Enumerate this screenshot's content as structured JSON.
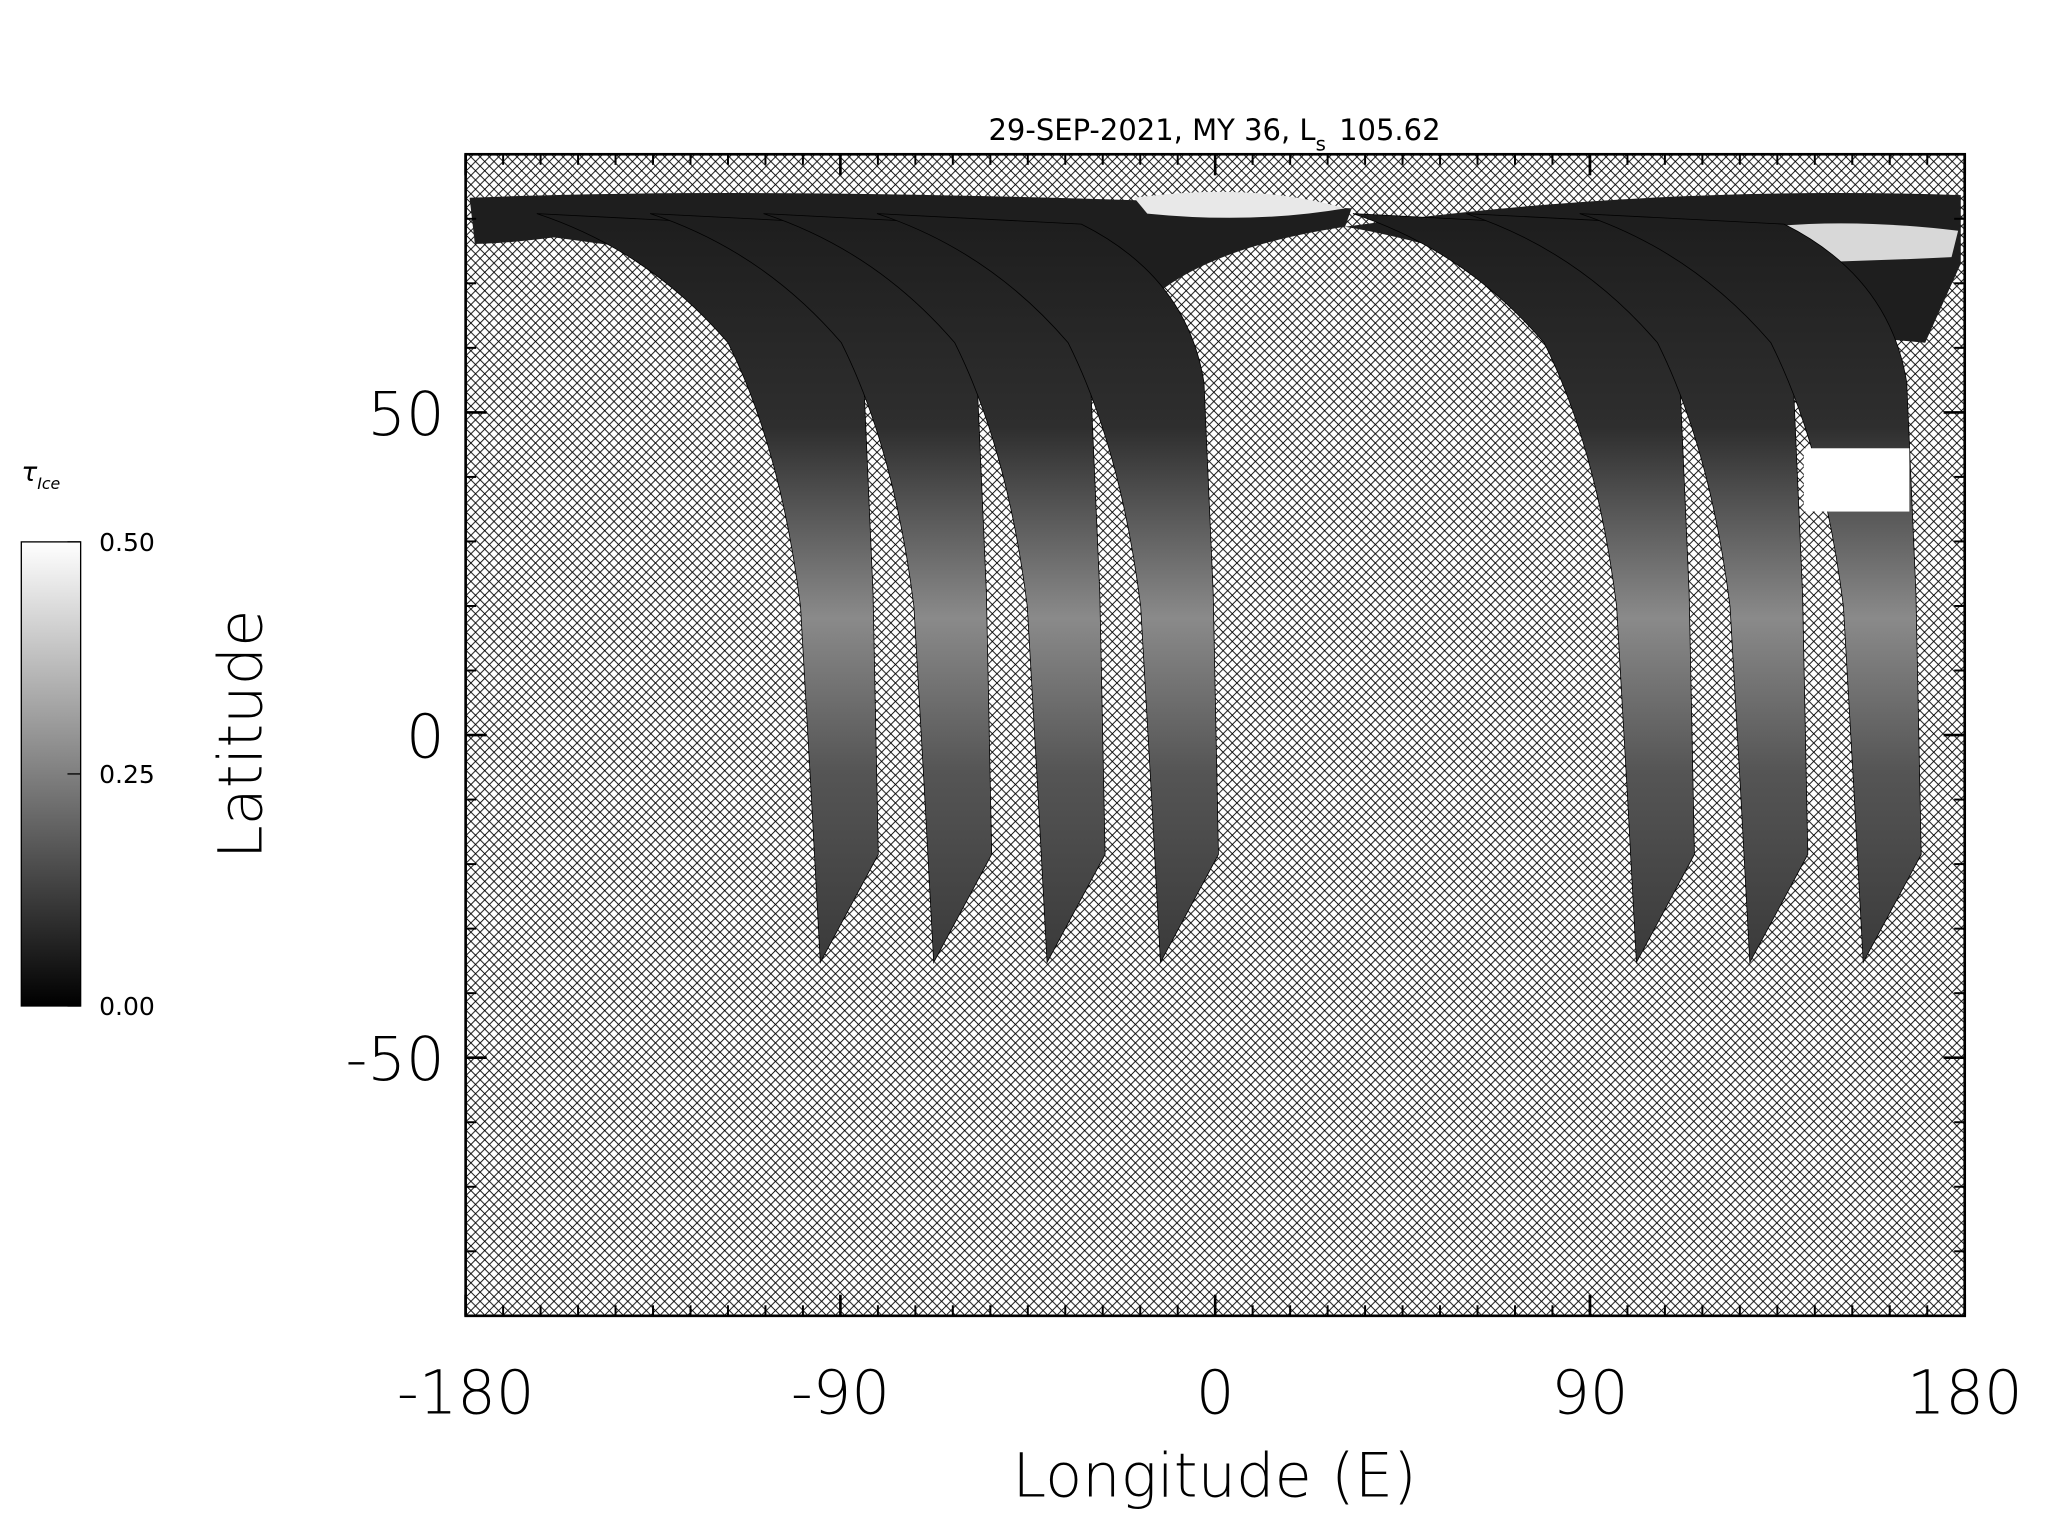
{
  "chart_data": {
    "type": "map",
    "title": "29-SEP-2021, MY 36,  L",
    "title_subscript": "s",
    "title_suffix": "105.62",
    "xlabel": "Longitude (E)",
    "ylabel": "Latitude",
    "xlim": [
      -180,
      180
    ],
    "xticks": [
      -180,
      -90,
      0,
      90,
      180
    ],
    "ylim": [
      -90,
      90
    ],
    "yticks": [
      -50,
      0,
      50
    ],
    "colorbar": {
      "label": "τ",
      "label_subscript": "Ice",
      "lim": [
        0,
        0.5
      ],
      "ticks": [
        {
          "value": 0,
          "label": "0.00"
        },
        {
          "value": 0.25,
          "label": "0.25"
        },
        {
          "value": 0.5,
          "label": "0.50"
        }
      ],
      "colors": [
        "#000000",
        "#ffffff"
      ]
    }
  }
}
